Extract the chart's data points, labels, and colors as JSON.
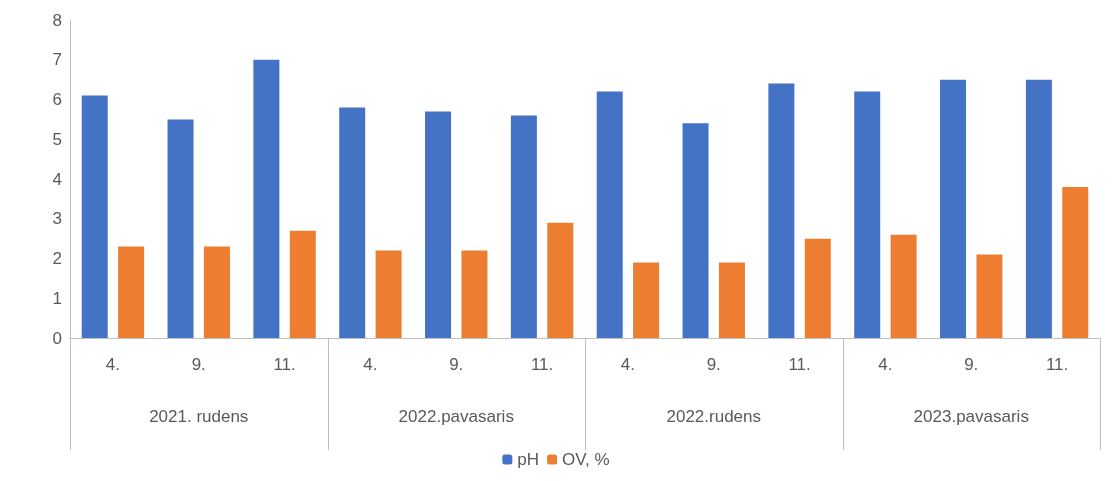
{
  "chart_data": {
    "type": "bar",
    "categories": [
      "4.",
      "9.",
      "11.",
      "4.",
      "9.",
      "11.",
      "4.",
      "9.",
      "11.",
      "4.",
      "9.",
      "11."
    ],
    "series": [
      {
        "name": "pH",
        "color": "#4472c4",
        "values": [
          6.1,
          5.5,
          7.0,
          5.8,
          5.7,
          5.6,
          6.2,
          5.4,
          6.4,
          6.2,
          6.5,
          6.5
        ]
      },
      {
        "name": "OV, %",
        "color": "#ed7d31",
        "values": [
          2.3,
          2.3,
          2.7,
          2.2,
          2.2,
          2.9,
          1.9,
          1.9,
          2.5,
          2.6,
          2.1,
          3.8
        ]
      }
    ],
    "annotations": [
      "2021. rudens",
      "2022.pavasaris",
      "2022.rudens",
      "2023.pavasaris"
    ],
    "ylim": [
      0,
      8
    ],
    "yticks": [
      0,
      1,
      2,
      3,
      4,
      5,
      6,
      7,
      8
    ],
    "grid": false,
    "legend": "bottom"
  }
}
